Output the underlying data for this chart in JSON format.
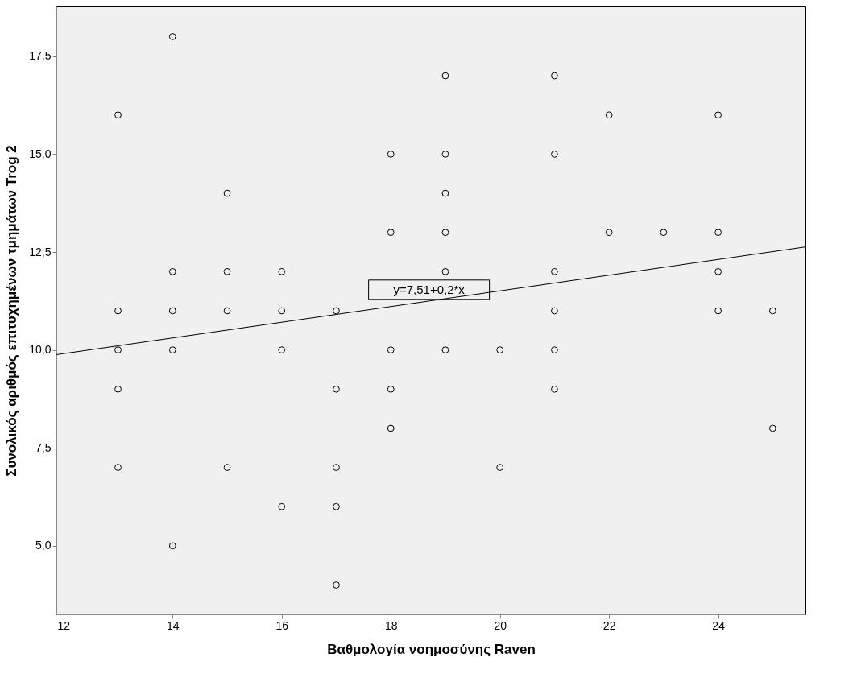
{
  "chart_data": {
    "type": "scatter",
    "xlabel": "Βαθμολογία νοημοσύνης Raven",
    "ylabel": "Συνολικός αριθμός επιτυχημένων τμημάτων Trog 2",
    "xlim": [
      11.87,
      25.6
    ],
    "xticks": [
      12,
      14,
      16,
      18,
      20,
      22,
      24
    ],
    "ylim": [
      3.25,
      18.77
    ],
    "yticks": [
      {
        "value": 5,
        "label": "5,0"
      },
      {
        "value": 7.5,
        "label": "7,5"
      },
      {
        "value": 10,
        "label": "10,0"
      },
      {
        "value": 12.5,
        "label": "12,5"
      },
      {
        "value": 15,
        "label": "15,0"
      },
      {
        "value": 17.5,
        "label": "17,5"
      }
    ],
    "grid": false,
    "series": [
      {
        "color": "#000000",
        "marker": "circle",
        "x": [
          13,
          13,
          13,
          13,
          13,
          14,
          14,
          14,
          14,
          14,
          15,
          15,
          15,
          15,
          16,
          16,
          16,
          16,
          17,
          17,
          17,
          17,
          17,
          18,
          18,
          18,
          18,
          18,
          19,
          19,
          19,
          19,
          19,
          19,
          20,
          20,
          21,
          21,
          21,
          21,
          21,
          21,
          22,
          22,
          23,
          24,
          24,
          24,
          24,
          25,
          25
        ],
        "values": [
          16,
          11,
          10,
          9,
          7,
          18,
          12,
          11,
          10,
          5,
          14,
          12,
          11,
          7,
          12,
          11,
          10,
          6,
          11,
          9,
          7,
          6,
          4,
          15,
          13,
          10,
          9,
          8,
          17,
          15,
          14,
          13,
          12,
          10,
          10,
          7,
          17,
          15,
          12,
          11,
          10,
          9,
          16,
          13,
          13,
          16,
          13,
          12,
          11,
          11,
          8
        ]
      },
      {
        "type": "line",
        "color": "#000000",
        "marker": "none",
        "line_style": "solid",
        "x": [
          11.87,
          25.6
        ],
        "values": [
          9.88,
          12.63
        ]
      }
    ],
    "annotations": [
      {
        "text": "y=7,51+0,2*x",
        "x": 18.7,
        "y": 11.25
      }
    ]
  }
}
